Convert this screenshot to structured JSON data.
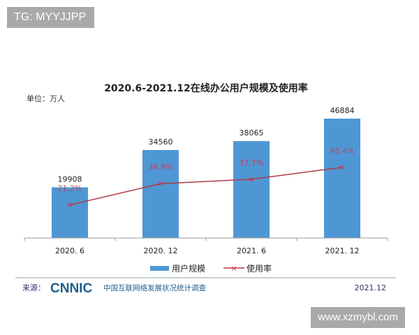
{
  "top_tag": "TG: MYYJJPP",
  "watermark": "www.xzmybl.com",
  "chart_data": {
    "type": "bar+line",
    "title": "2020.6-2021.12在线办公用户规模及使用率",
    "unit_label": "单位：万人",
    "categories": [
      "2020. 6",
      "2020. 12",
      "2021. 6",
      "2021. 12"
    ],
    "series": [
      {
        "name": "用户规模",
        "type": "bar",
        "values": [
          19908,
          34560,
          38065,
          46884
        ],
        "labels": [
          "19908",
          "34560",
          "38065",
          "46884"
        ],
        "color": "#4f97d4"
      },
      {
        "name": "使用率",
        "type": "line",
        "values": [
          21.2,
          34.9,
          37.7,
          45.4
        ],
        "labels": [
          "21.2%",
          "34.9%",
          "37.7%",
          "45.4%"
        ],
        "color": "#b03a48"
      }
    ],
    "legend_placement": "bottom",
    "grid": false
  },
  "footer": {
    "source_label": "来源：",
    "logo": "CNNIC",
    "org": "中国互联网络发展状况统计调查",
    "date": "2021.12"
  }
}
